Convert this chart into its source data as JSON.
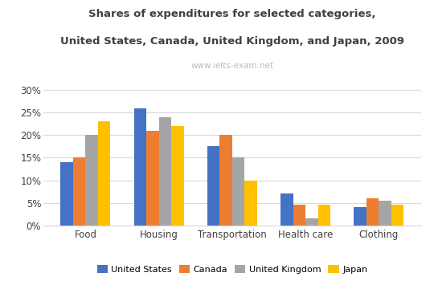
{
  "title_line1": "Shares of expenditures for selected categories,",
  "title_line2": "United States, Canada, United Kingdom, and Japan, 2009",
  "watermark": "www.ielts-exam.net",
  "categories": [
    "Food",
    "Housing",
    "Transportation",
    "Health care",
    "Clothing"
  ],
  "series": {
    "United States": [
      14,
      26,
      17.5,
      7,
      4
    ],
    "Canada": [
      15,
      21,
      20,
      4.5,
      6
    ],
    "United Kingdom": [
      20,
      24,
      15,
      1.5,
      5.5
    ],
    "Japan": [
      23,
      22,
      10,
      4.5,
      4.5
    ]
  },
  "colors": {
    "United States": "#4472C4",
    "Canada": "#ED7D31",
    "United Kingdom": "#A5A5A5",
    "Japan": "#FFC000"
  },
  "yticks": [
    0,
    5,
    10,
    15,
    20,
    25,
    30
  ],
  "ylim": [
    0,
    32
  ],
  "background_color": "#FFFFFF",
  "grid_color": "#D9D9D9",
  "title_color": "#404040",
  "watermark_color": "#BBBBBB",
  "bar_width": 0.17
}
